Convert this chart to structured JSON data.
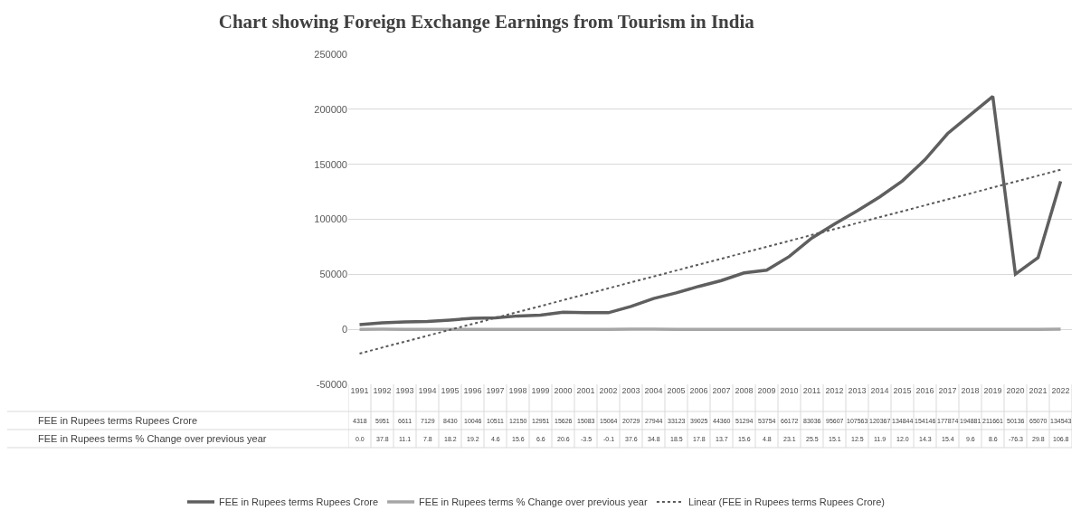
{
  "chart_data": {
    "type": "line",
    "title": "Chart showing Foreign Exchange Earnings from Tourism in India",
    "categories": [
      "1991",
      "1992",
      "1993",
      "1994",
      "1995",
      "1996",
      "1997",
      "1998",
      "1999",
      "2000",
      "2001",
      "2002",
      "2003",
      "2004",
      "2005",
      "2006",
      "2007",
      "2008",
      "2009",
      "2010",
      "2011",
      "2012",
      "2013",
      "2014",
      "2015",
      "2016",
      "2017",
      "2018",
      "2019",
      "2020",
      "2021",
      "2022"
    ],
    "series": [
      {
        "name": "FEE in Rupees terms Rupees Crore",
        "color": "#5f5f5f",
        "values": [
          4318,
          5951,
          6611,
          7129,
          8430,
          10046,
          10511,
          12150,
          12951,
          15626,
          15083,
          15064,
          20729,
          27944,
          33123,
          39025,
          44360,
          51294,
          53754,
          66172,
          83036,
          95607,
          107563,
          120367,
          134844,
          154146,
          177874,
          194881,
          211661,
          50136,
          65070,
          134543
        ],
        "value_labels": [
          "4318",
          "5951",
          "6611",
          "7129",
          "8430",
          "10046",
          "10511",
          "12150",
          "12951",
          "15626",
          "15083",
          "15064",
          "20729",
          "27944",
          "33123",
          "39025",
          "44360",
          "51294",
          "53754",
          "66172",
          "83036",
          "95607",
          "107563",
          "120367",
          "134844",
          "154146",
          "177874",
          "194881",
          "211661",
          "50136",
          "65070",
          "134543"
        ]
      },
      {
        "name": "FEE in Rupees terms % Change over previous year",
        "color": "#a6a6a6",
        "values": [
          0.0,
          37.8,
          11.1,
          7.8,
          18.2,
          19.2,
          4.6,
          15.6,
          6.6,
          20.6,
          -3.5,
          -0.1,
          37.6,
          34.8,
          18.5,
          17.8,
          13.7,
          15.6,
          4.8,
          23.1,
          25.5,
          15.1,
          12.5,
          11.9,
          12.0,
          14.3,
          15.4,
          9.6,
          8.6,
          -76.3,
          29.8,
          106.8
        ],
        "value_labels": [
          "0.0",
          "37.8",
          "11.1",
          "7.8",
          "18.2",
          "19.2",
          "4.6",
          "15.6",
          "6.6",
          "20.6",
          "-3.5",
          "-0.1",
          "37.6",
          "34.8",
          "18.5",
          "17.8",
          "13.7",
          "15.6",
          "4.8",
          "23.1",
          "25.5",
          "15.1",
          "12.5",
          "11.9",
          "12.0",
          "14.3",
          "15.4",
          "9.6",
          "8.6",
          "-76.3",
          "29.8",
          "106.8"
        ]
      },
      {
        "name": "Linear (FEE in Rupees terms Rupees Crore)",
        "color": "#595959",
        "line_style": "dotted",
        "values": [
          -22000,
          null,
          null,
          null,
          null,
          null,
          null,
          null,
          null,
          null,
          null,
          null,
          null,
          null,
          null,
          null,
          null,
          null,
          null,
          null,
          null,
          null,
          null,
          null,
          null,
          null,
          null,
          null,
          null,
          null,
          null,
          145000
        ]
      }
    ],
    "ylim": [
      -50000,
      250000
    ],
    "yticks": [
      -50000,
      0,
      50000,
      100000,
      150000,
      200000,
      250000
    ],
    "grid": "y",
    "legend": "bottom"
  }
}
